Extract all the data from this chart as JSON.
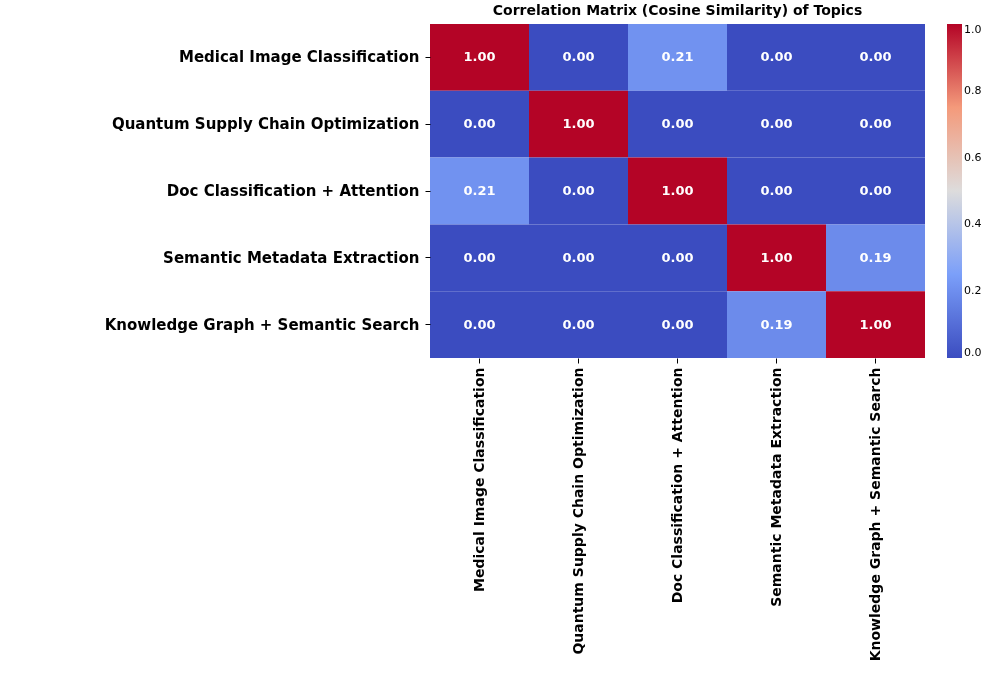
{
  "chart_data": {
    "type": "heatmap",
    "title": "Correlation Matrix (Cosine Similarity) of Topics",
    "categories": [
      "Medical Image Classification",
      "Quantum Supply Chain Optimization",
      "Doc Classification + Attention",
      "Semantic Metadata Extraction",
      "Knowledge Graph + Semantic Search"
    ],
    "y_categories": [
      "Medical Image Classification",
      "Quantum Supply Chain Optimization",
      "Doc Classification + Attention",
      "Semantic Metadata Extraction",
      "Knowledge Graph + Semantic Search"
    ],
    "cells": [
      [
        1.0,
        0.0,
        0.21,
        0.0,
        0.0
      ],
      [
        0.0,
        1.0,
        0.0,
        0.0,
        0.0
      ],
      [
        0.21,
        0.0,
        1.0,
        0.0,
        0.0
      ],
      [
        0.0,
        0.0,
        0.0,
        1.0,
        0.19
      ],
      [
        0.0,
        0.0,
        0.0,
        0.19,
        1.0
      ]
    ],
    "cell_labels": [
      [
        "1.00",
        "0.00",
        "0.21",
        "0.00",
        "0.00"
      ],
      [
        "0.00",
        "1.00",
        "0.00",
        "0.00",
        "0.00"
      ],
      [
        "0.21",
        "0.00",
        "1.00",
        "0.00",
        "0.00"
      ],
      [
        "0.00",
        "0.00",
        "0.00",
        "1.00",
        "0.19"
      ],
      [
        "0.00",
        "0.00",
        "0.00",
        "0.19",
        "1.00"
      ]
    ],
    "clim": [
      0,
      1
    ],
    "cticks": [
      {
        "value": 0,
        "label": "0.0"
      },
      {
        "value": 0.2,
        "label": "0.2"
      },
      {
        "value": 0.4,
        "label": "0.4"
      },
      {
        "value": 0.6,
        "label": "0.6"
      },
      {
        "value": 0.8,
        "label": "0.8"
      },
      {
        "value": 1,
        "label": "1.0"
      }
    ]
  }
}
